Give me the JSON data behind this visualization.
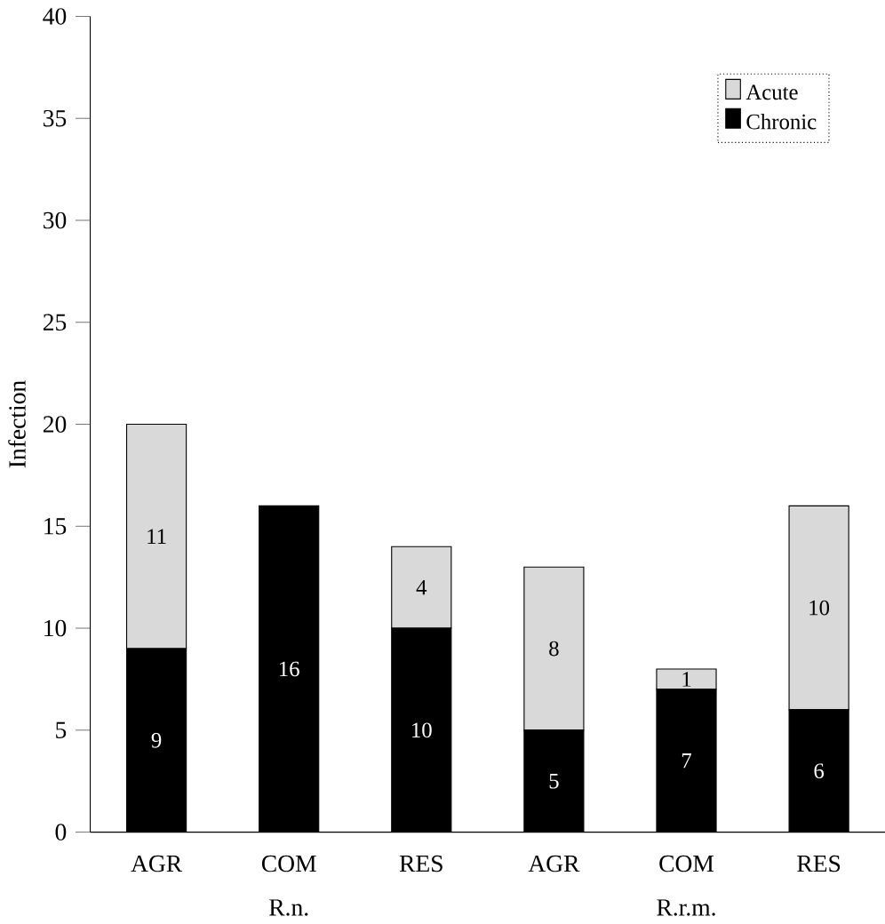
{
  "chart_data": {
    "type": "bar",
    "stacked": true,
    "ylabel": "Infection",
    "categories": [
      "AGR",
      "COM",
      "RES",
      "AGR",
      "COM",
      "RES"
    ],
    "series": [
      {
        "name": "Chronic",
        "color": "#000000",
        "values": [
          9,
          16,
          10,
          5,
          7,
          6
        ],
        "value_labels": [
          "9",
          "16",
          "10",
          "5",
          "7",
          "6"
        ]
      },
      {
        "name": "Acute",
        "color": "#d9d9d9",
        "values": [
          11,
          0,
          4,
          8,
          1,
          10
        ],
        "value_labels": [
          "11",
          null,
          "4",
          "8",
          "1",
          "10"
        ]
      }
    ],
    "annotations": [
      "R.n.",
      "R.r.m."
    ],
    "ylim": [
      0,
      40
    ],
    "yticks": [
      0,
      5,
      10,
      15,
      20,
      25,
      30,
      35,
      40
    ],
    "grid": false,
    "legend": "top right"
  }
}
